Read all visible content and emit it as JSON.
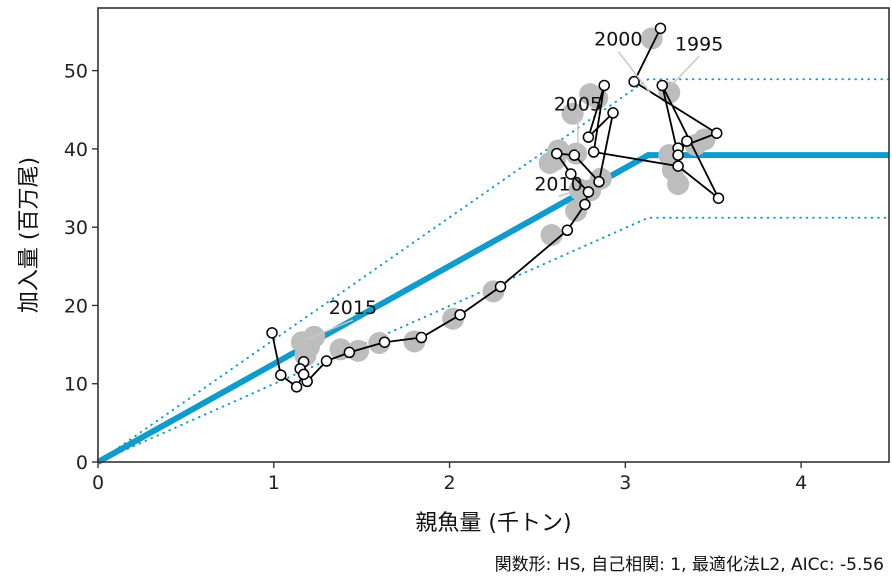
{
  "caption": "関数形: HS, 自己相関: 1, 最適化法L2, AICc: -5.56",
  "chart_data": {
    "type": "scatter",
    "xlabel": "親魚量 (千トン)",
    "ylabel": "加入量 (百万尾)",
    "xlim": [
      0,
      4.5
    ],
    "ylim": [
      0,
      58
    ],
    "xticks": [
      "0",
      "1",
      "2",
      "3",
      "4"
    ],
    "yticks": [
      "0",
      "10",
      "20",
      "30",
      "40",
      "50"
    ],
    "grid": false,
    "colors": {
      "fit": "#0f9bcb",
      "observed": "#000000",
      "predicted": "#bdbdbd",
      "label_leader": "#c8c8c8"
    },
    "fit_line": {
      "breakpoint_x": 3.13,
      "plateau_y": 39.2
    },
    "interval_upper": {
      "breakpoint_x": 3.13,
      "plateau_y": 48.9
    },
    "interval_lower": {
      "breakpoint_x": 3.13,
      "plateau_y": 31.2
    },
    "observed": {
      "x": [
        3.2,
        3.05,
        3.52,
        3.3,
        3.35,
        3.3,
        3.21,
        3.53,
        3.3,
        2.82,
        2.88,
        2.79,
        2.93,
        2.85,
        2.71,
        2.61,
        2.69,
        2.79,
        2.77,
        2.67,
        2.29,
        2.06,
        1.84,
        1.63,
        1.43,
        1.3,
        1.19,
        1.17,
        1.15,
        1.17,
        1.13,
        1.04,
        0.99
      ],
      "y": [
        55.4,
        48.6,
        42.0,
        40.1,
        41.0,
        39.2,
        48.1,
        33.7,
        37.8,
        39.6,
        48.1,
        41.5,
        44.6,
        35.8,
        39.2,
        39.4,
        36.8,
        34.5,
        32.9,
        29.6,
        22.4,
        18.8,
        15.9,
        15.3,
        14.0,
        12.9,
        10.3,
        12.8,
        11.9,
        11.2,
        9.6,
        11.1,
        16.5
      ]
    },
    "predicted_centers": {
      "x": [
        3.15,
        2.72,
        3.25,
        3.45,
        3.4,
        2.7,
        2.8,
        2.84,
        2.6,
        2.57,
        2.62,
        2.74,
        2.86,
        3.25,
        3.27,
        3.3,
        2.72,
        2.8,
        2.58,
        2.25,
        2.02,
        1.8,
        1.6,
        1.38,
        1.2,
        1.16,
        1.23,
        1.18,
        1.48
      ],
      "y": [
        54.1,
        39.4,
        47.2,
        41.2,
        40.5,
        44.5,
        47.0,
        46.5,
        38.6,
        38.2,
        39.8,
        34.8,
        36.2,
        39.2,
        37.3,
        35.5,
        32.1,
        34.7,
        29.0,
        21.8,
        18.3,
        15.4,
        15.2,
        14.4,
        14.7,
        15.3,
        16.0,
        13.6,
        14.2
      ]
    },
    "year_labels": [
      {
        "text": "1995",
        "x": 3.26,
        "y": 48.1,
        "label_x": 3.42,
        "label_y": 52.6
      },
      {
        "text": "2000",
        "x": 3.14,
        "y": 47.2,
        "label_x": 2.96,
        "label_y": 53.2
      },
      {
        "text": "2005",
        "x": 2.73,
        "y": 39.7,
        "label_x": 2.73,
        "label_y": 44.9
      },
      {
        "text": "2010",
        "x": 2.7,
        "y": 34.5,
        "label_x": 2.62,
        "label_y": 34.7
      },
      {
        "text": "2015",
        "x": 1.18,
        "y": 15.6,
        "label_x": 1.45,
        "label_y": 18.9
      }
    ]
  }
}
